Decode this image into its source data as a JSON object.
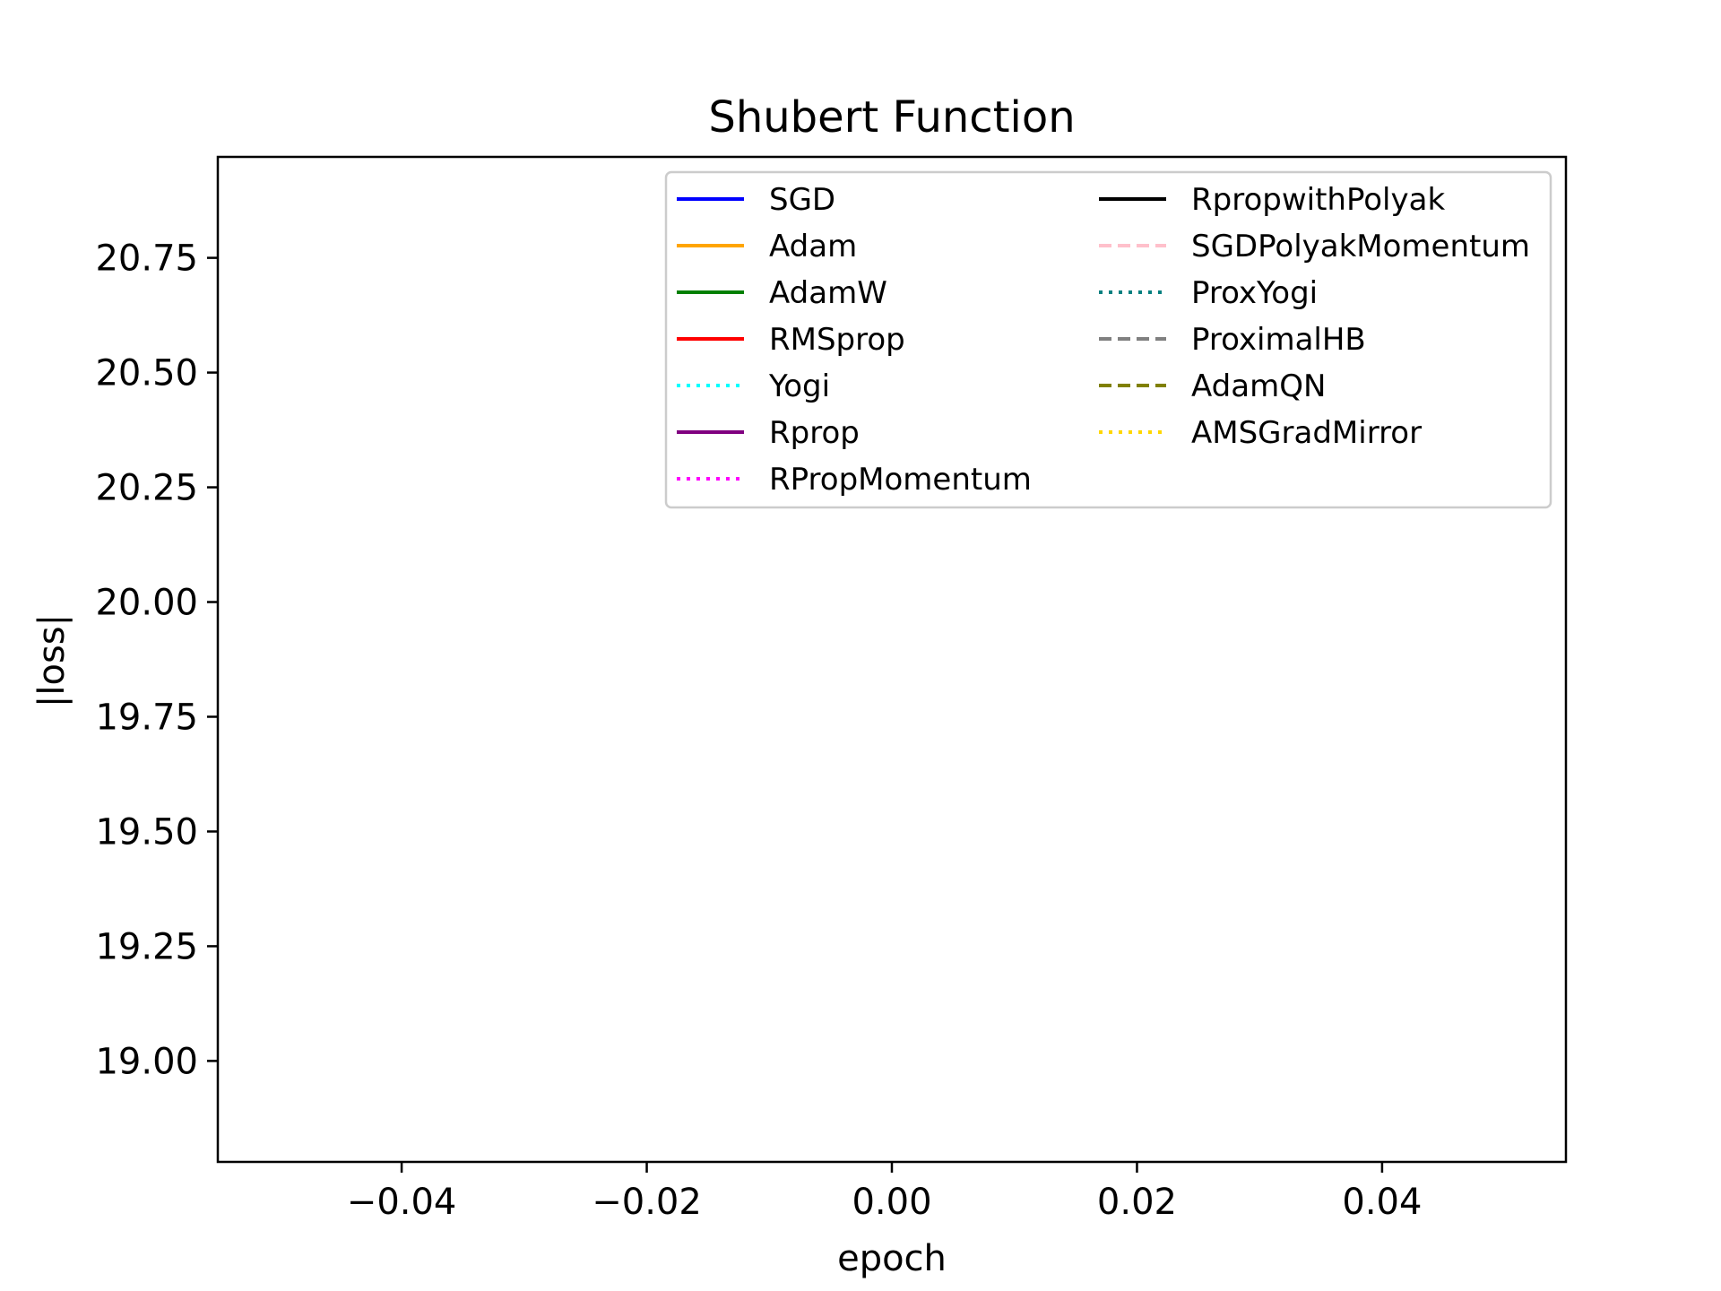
{
  "chart_data": {
    "type": "line",
    "title": "Shubert Function",
    "xlabel": "epoch",
    "ylabel": "|loss|",
    "xlim": [
      -0.055,
      0.055
    ],
    "ylim": [
      18.78,
      20.97
    ],
    "xticks": [
      -0.04,
      -0.02,
      0.0,
      0.02,
      0.04
    ],
    "xtick_labels": [
      "−0.04",
      "−0.02",
      "0.00",
      "0.02",
      "0.04"
    ],
    "yticks": [
      19.0,
      19.25,
      19.5,
      19.75,
      20.0,
      20.25,
      20.5,
      20.75
    ],
    "ytick_labels": [
      "19.00",
      "19.25",
      "19.50",
      "19.75",
      "20.00",
      "20.25",
      "20.50",
      "20.75"
    ],
    "grid": false,
    "legend_position": "top-right",
    "legend_columns": 2,
    "series": [
      {
        "name": "SGD",
        "color": "#0000ff",
        "style": "solid",
        "x": [],
        "y": []
      },
      {
        "name": "Adam",
        "color": "#ffa500",
        "style": "solid",
        "x": [],
        "y": []
      },
      {
        "name": "AdamW",
        "color": "#008000",
        "style": "solid",
        "x": [],
        "y": []
      },
      {
        "name": "RMSprop",
        "color": "#ff0000",
        "style": "solid",
        "x": [],
        "y": []
      },
      {
        "name": "Yogi",
        "color": "#00ffff",
        "style": "dotted",
        "x": [],
        "y": []
      },
      {
        "name": "Rprop",
        "color": "#800080",
        "style": "solid",
        "x": [],
        "y": []
      },
      {
        "name": "RPropMomentum",
        "color": "#ff00ff",
        "style": "dotted",
        "x": [],
        "y": []
      },
      {
        "name": "RpropwithPolyak",
        "color": "#000000",
        "style": "solid",
        "x": [],
        "y": []
      },
      {
        "name": "SGDPolyakMomentum",
        "color": "#ffc0cb",
        "style": "dashed",
        "x": [],
        "y": []
      },
      {
        "name": "ProxYogi",
        "color": "#008080",
        "style": "dotted",
        "x": [],
        "y": []
      },
      {
        "name": "ProximalHB",
        "color": "#808080",
        "style": "dashed",
        "x": [],
        "y": []
      },
      {
        "name": "AdamQN",
        "color": "#808000",
        "style": "dashed",
        "x": [],
        "y": []
      },
      {
        "name": "AMSGradMirror",
        "color": "#ffd700",
        "style": "dotted",
        "x": [],
        "y": []
      }
    ]
  }
}
